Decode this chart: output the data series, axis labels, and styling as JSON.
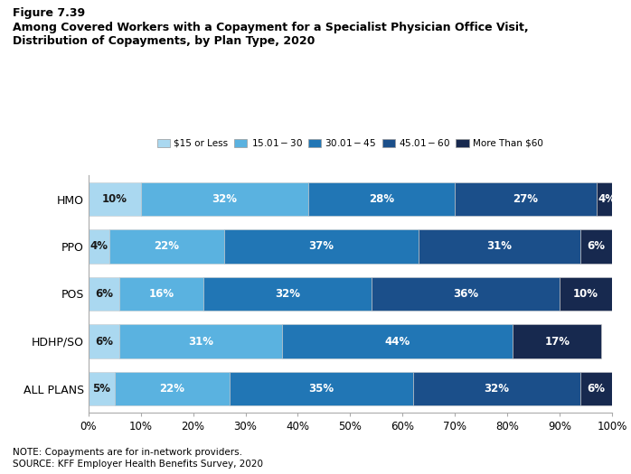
{
  "title_line1": "Figure 7.39",
  "title_line2": "Among Covered Workers with a Copayment for a Specialist Physician Office Visit,",
  "title_line3": "Distribution of Copayments, by Plan Type, 2020",
  "categories": [
    "HMO",
    "PPO",
    "POS",
    "HDHP/SO",
    "ALL PLANS"
  ],
  "legend_labels": [
    "$15 or Less",
    "$15.01 - $30",
    "$30.01 - $45",
    "$45.01 - $60",
    "More Than $60"
  ],
  "colors": [
    "#aad8f0",
    "#5ab2e0",
    "#2176b5",
    "#1b4f8a",
    "#17294f"
  ],
  "data": {
    "HMO": [
      10,
      32,
      28,
      27,
      4
    ],
    "PPO": [
      4,
      22,
      37,
      31,
      6
    ],
    "POS": [
      6,
      16,
      32,
      36,
      10
    ],
    "HDHP/SO": [
      6,
      31,
      44,
      0,
      17
    ],
    "ALL PLANS": [
      5,
      22,
      35,
      32,
      6
    ]
  },
  "text_colors": {
    "HMO": [
      "#333333",
      "white",
      "white",
      "white",
      "white"
    ],
    "PPO": [
      "#333333",
      "white",
      "white",
      "white",
      "white"
    ],
    "POS": [
      "#333333",
      "white",
      "white",
      "white",
      "white"
    ],
    "HDHP/SO": [
      "#333333",
      "white",
      "white",
      "white",
      "white"
    ],
    "ALL PLANS": [
      "#333333",
      "white",
      "white",
      "white",
      "white"
    ]
  },
  "note": "NOTE: Copayments are for in-network providers.",
  "source": "SOURCE: KFF Employer Health Benefits Survey, 2020",
  "background_color": "#ffffff",
  "bar_edge_color": "#cccccc"
}
